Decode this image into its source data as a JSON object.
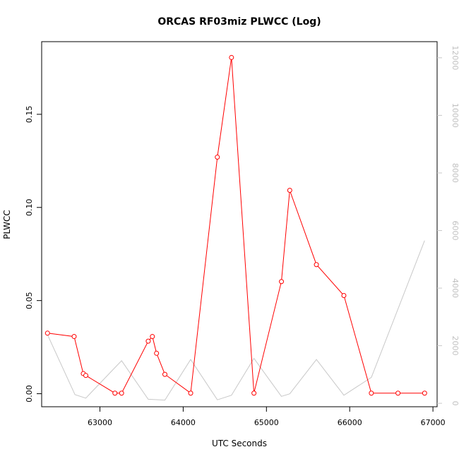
{
  "chart_data": {
    "type": "line",
    "title": "ORCAS RF03miz PLWCC (Log)",
    "xlabel": "UTC Seconds",
    "ylabel": "PLWCC",
    "xlim": [
      62300,
      67050
    ],
    "ylim": [
      -0.007,
      0.189
    ],
    "y2lim": [
      -120,
      12560
    ],
    "x_ticks": [
      63000,
      64000,
      65000,
      66000,
      67000
    ],
    "x_tick_labels": [
      "63000",
      "64000",
      "65000",
      "66000",
      "67000"
    ],
    "y_ticks": [
      0.0,
      0.05,
      0.1,
      0.15
    ],
    "y_tick_labels": [
      "0.00",
      "0.05",
      "0.10",
      "0.15"
    ],
    "y2_ticks": [
      0,
      2000,
      4000,
      6000,
      8000,
      10000,
      12000
    ],
    "y2_tick_labels": [
      "0",
      "2000",
      "4000",
      "6000",
      "8000",
      "10000",
      "12000"
    ],
    "grid": false,
    "series": [
      {
        "color": "#ff0000",
        "axis": "left",
        "markers": "open-circle",
        "x": [
          62370,
          62690,
          62800,
          62830,
          63180,
          63260,
          63580,
          63630,
          63680,
          63780,
          64090,
          64410,
          64580,
          64850,
          65180,
          65280,
          65600,
          65930,
          66260,
          66580,
          66900
        ],
        "y": [
          0.0325,
          0.0307,
          0.0108,
          0.0098,
          0.0003,
          0.0003,
          0.0282,
          0.0307,
          0.0217,
          0.0104,
          0.0003,
          0.127,
          0.1805,
          0.0003,
          0.0602,
          0.1092,
          0.0693,
          0.0527,
          0.0003,
          0.0003,
          0.0003
        ]
      },
      {
        "color": "#c8c8c8",
        "axis": "right",
        "markers": "none",
        "x": [
          62370,
          62700,
          62830,
          63200,
          63260,
          63580,
          63780,
          64090,
          64410,
          64580,
          64850,
          65180,
          65280,
          65600,
          65930,
          66260,
          66900
        ],
        "y": [
          2380,
          300,
          180,
          1300,
          1480,
          140,
          110,
          1520,
          120,
          280,
          1560,
          240,
          330,
          1520,
          280,
          900,
          5650
        ]
      }
    ]
  }
}
